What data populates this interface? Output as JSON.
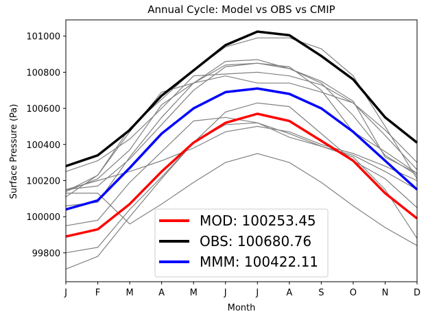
{
  "chart_data": {
    "type": "line",
    "title": "Annual Cycle: Model vs OBS vs CMIP",
    "xlabel": "Month",
    "ylabel": "Surface Pressure (Pa)",
    "categories": [
      "J",
      "F",
      "M",
      "A",
      "M",
      "J",
      "J",
      "A",
      "S",
      "O",
      "N",
      "D"
    ],
    "ylim": [
      99640,
      101090
    ],
    "yticks": [
      99800,
      100000,
      100200,
      100400,
      100600,
      100800,
      101000
    ],
    "grid": false,
    "legend_position": "lower-center",
    "ensemble_color": "#808080",
    "ensemble": [
      [
        100140,
        100230,
        100470,
        100690,
        100740,
        100860,
        100870,
        100820,
        100750,
        100640,
        100330,
        100240
      ],
      [
        100110,
        100230,
        100490,
        100650,
        100810,
        100940,
        100990,
        100990,
        100930,
        100780,
        100500,
        100210
      ],
      [
        100060,
        100080,
        100330,
        100550,
        100740,
        100840,
        100850,
        100820,
        100740,
        100560,
        100340,
        100230
      ],
      [
        100150,
        100170,
        100320,
        100510,
        100700,
        100830,
        100850,
        100830,
        100700,
        100470,
        100360,
        100240
      ],
      [
        99950,
        99980,
        100190,
        100360,
        100530,
        100550,
        100520,
        100440,
        100390,
        100340,
        100250,
        100150
      ],
      [
        100250,
        100310,
        100430,
        100600,
        100780,
        100790,
        100800,
        100780,
        100730,
        100630,
        100480,
        100300
      ],
      [
        99800,
        99830,
        100040,
        100220,
        100410,
        100580,
        100630,
        100610,
        100460,
        100310,
        100210,
        100050
      ],
      [
        99710,
        99780,
        100000,
        100210,
        100410,
        100510,
        100520,
        100460,
        100390,
        100330,
        100150,
        99880
      ],
      [
        100140,
        100210,
        100370,
        100620,
        100740,
        100780,
        100740,
        100740,
        100690,
        100630,
        100450,
        100260
      ],
      [
        100150,
        100200,
        100250,
        100310,
        100380,
        100470,
        100500,
        100470,
        100400,
        100350,
        100280,
        100200
      ],
      [
        100130,
        100130,
        99960,
        100070,
        100190,
        100300,
        100350,
        100300,
        100190,
        100060,
        99940,
        99840
      ]
    ],
    "series": [
      {
        "name": "MOD",
        "legend": "MOD: 100253.45",
        "color": "#ff0000",
        "values": [
          99890,
          99930,
          100070,
          100250,
          100410,
          100520,
          100570,
          100530,
          100420,
          100310,
          100130,
          99990
        ]
      },
      {
        "name": "OBS",
        "legend": "OBS: 100680.76",
        "color": "#000000",
        "values": [
          100280,
          100340,
          100480,
          100670,
          100810,
          100950,
          101025,
          101005,
          100890,
          100760,
          100550,
          100410
        ]
      },
      {
        "name": "MMM",
        "legend": "MMM: 100422.11",
        "color": "#0000ff",
        "values": [
          100040,
          100090,
          100270,
          100460,
          100600,
          100690,
          100710,
          100680,
          100600,
          100470,
          100310,
          100150
        ]
      }
    ]
  }
}
